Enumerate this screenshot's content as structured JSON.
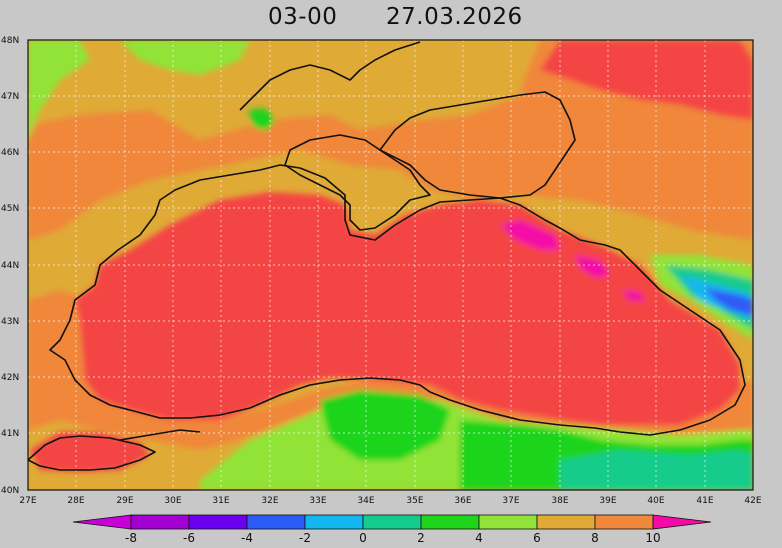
{
  "title": {
    "time": "03-00",
    "date": "27.03.2026"
  },
  "map": {
    "variable_colors": {
      "-8": "#a200d2",
      "-6": "#6a00ee",
      "-4": "#2d5bf5",
      "-2": "#14b6f0",
      "0": "#16cc8c",
      "2": "#1fd41a",
      "4": "#92e338",
      "6": "#e0aa36",
      "8": "#f0873a",
      "10": "#f44545",
      "12": "#f40aa6"
    },
    "lat_labels": [
      "48N",
      "47N",
      "46N",
      "45N",
      "44N",
      "43N",
      "42N",
      "41N",
      "40N"
    ],
    "lon_labels": [
      "27E",
      "28E",
      "29E",
      "30E",
      "31E",
      "32E",
      "33E",
      "34E",
      "35E",
      "36E",
      "37E",
      "38E",
      "39E",
      "40E",
      "41E",
      "42E"
    ],
    "colorbar": {
      "labels": [
        "-8",
        "-6",
        "-4",
        "-2",
        "0",
        "2",
        "4",
        "6",
        "8",
        "10"
      ],
      "colors": [
        "#a200d2",
        "#6a00ee",
        "#2d5bf5",
        "#14b6f0",
        "#16cc8c",
        "#1fd41a",
        "#92e338",
        "#e0aa36",
        "#f0873a",
        "#f44545"
      ],
      "arrow_left": "#c600d6",
      "arrow_right": "#f40aa6"
    }
  }
}
